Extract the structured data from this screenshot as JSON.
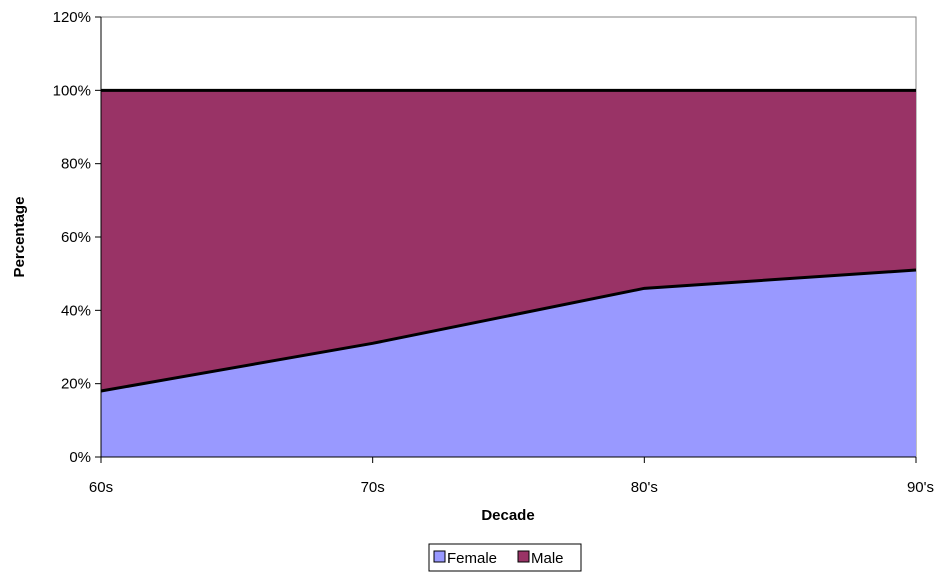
{
  "chart_data": {
    "type": "area",
    "stacked": true,
    "categories": [
      "60s",
      "70s",
      "80's",
      "90's"
    ],
    "series": [
      {
        "name": "Female",
        "values": [
          18,
          31,
          46,
          51
        ],
        "color": "#9999ff"
      },
      {
        "name": "Male",
        "values": [
          82,
          69,
          54,
          49
        ],
        "color": "#993366"
      }
    ],
    "xlabel": "Decade",
    "ylabel": "Percentage",
    "ylim": [
      0,
      120
    ],
    "yticks": [
      "0%",
      "20%",
      "40%",
      "60%",
      "80%",
      "100%",
      "120%"
    ],
    "grid": false,
    "legend_position": "bottom"
  }
}
